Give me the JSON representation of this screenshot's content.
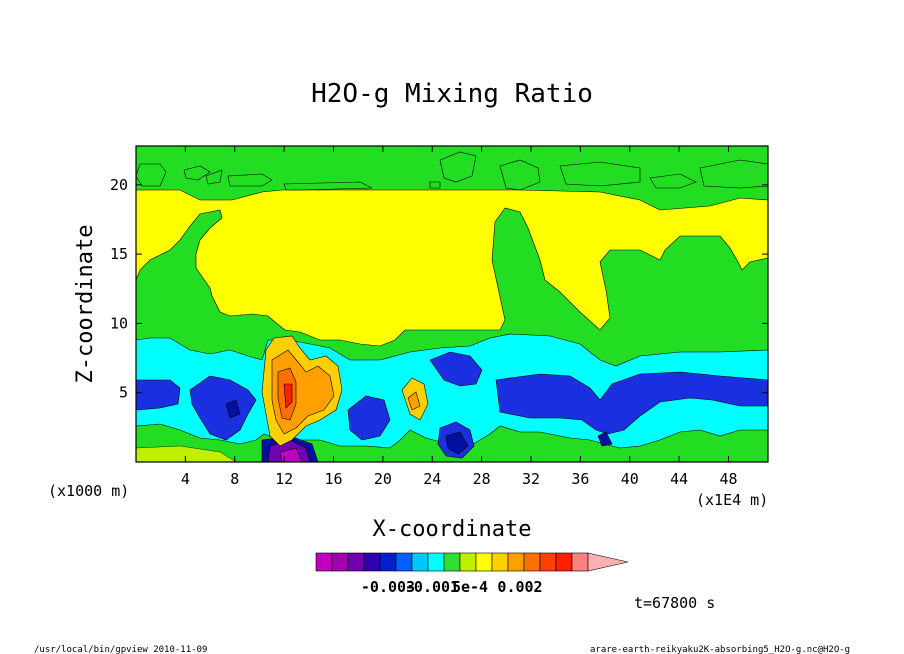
{
  "chart_data": {
    "type": "heatmap",
    "title": "H2O-g Mixing Ratio",
    "xlabel": "X-coordinate",
    "ylabel": "Z-coordinate",
    "x_unit_left": "(x1000 m)",
    "x_unit_right": "(x1E4 m)",
    "x_ticks": [
      4,
      8,
      12,
      16,
      20,
      24,
      28,
      32,
      36,
      40,
      44,
      48
    ],
    "y_ticks": [
      5,
      10,
      15,
      20
    ],
    "xlim": [
      0,
      51.2
    ],
    "ylim": [
      0,
      22.8
    ],
    "colorbar": {
      "colors": [
        "#c000c0",
        "#a000b0",
        "#7000b0",
        "#3000b0",
        "#0020d0",
        "#0060ff",
        "#00c8ff",
        "#00ffff",
        "#30e030",
        "#c0f000",
        "#ffff00",
        "#ffd000",
        "#ffa000",
        "#ff7000",
        "#ff4000",
        "#ff2000",
        "#ff8080",
        "#ffb0b0"
      ],
      "labels": [
        "-0.003",
        "-0.001",
        "5e-4",
        "0.002"
      ]
    },
    "contour_regions": [
      {
        "level": "green",
        "color": "#22dd22",
        "desc": "lower/mid moist layer and side columns"
      },
      {
        "level": "yellow",
        "color": "#ffff00",
        "desc": "upper dry region"
      },
      {
        "level": "cyan",
        "color": "#00ffff",
        "desc": "lower layer 2-9 km"
      },
      {
        "level": "blue",
        "color": "#1a30e0",
        "desc": "band near 3-5 km"
      },
      {
        "level": "orange",
        "color": "#ffa000",
        "desc": "convective plume x 11-16"
      }
    ]
  },
  "annotations": {
    "time": "t=67800 s",
    "footer_left": "/usr/local/bin/gpview   2010-11-09",
    "footer_right": "arare-earth-reikyaku2K-absorbing5_H2O-g.nc@H2O-g"
  }
}
